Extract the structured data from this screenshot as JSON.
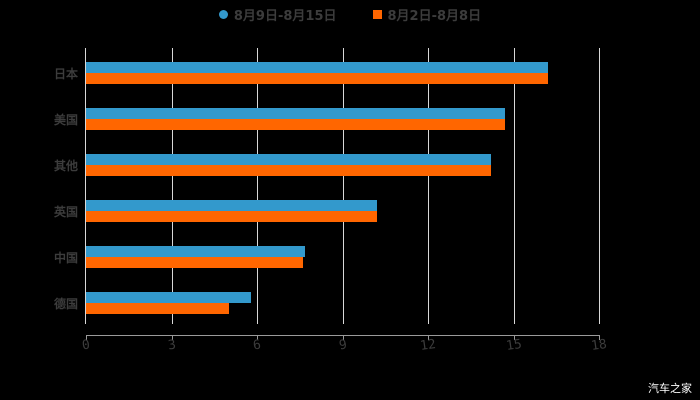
{
  "chart_data": {
    "type": "bar",
    "orientation": "horizontal",
    "title": "",
    "xlabel": "",
    "ylabel": "",
    "xlim": [
      0,
      18
    ],
    "x_ticks": [
      "0",
      "3",
      "6",
      "9",
      "12",
      "15",
      "18"
    ],
    "grid": true,
    "legend_position": "top",
    "categories": [
      "日本",
      "美国",
      "其他",
      "英国",
      "中国",
      "德国"
    ],
    "series": [
      {
        "name": "8月9日-8月15日",
        "color": "#3399cc",
        "values": [
          16.2,
          14.7,
          14.2,
          10.2,
          7.7,
          5.8
        ]
      },
      {
        "name": "8月2日-8月8日",
        "color": "#ff6600",
        "values": [
          16.2,
          14.7,
          14.2,
          10.2,
          7.6,
          5.0
        ]
      }
    ]
  },
  "legend": {
    "items": [
      {
        "label": "8月9日-8月15日",
        "color": "#3399cc",
        "shape": "circle"
      },
      {
        "label": "8月2日-8月8日",
        "color": "#ff6600",
        "shape": "square"
      }
    ]
  },
  "watermark": "汽车之家"
}
